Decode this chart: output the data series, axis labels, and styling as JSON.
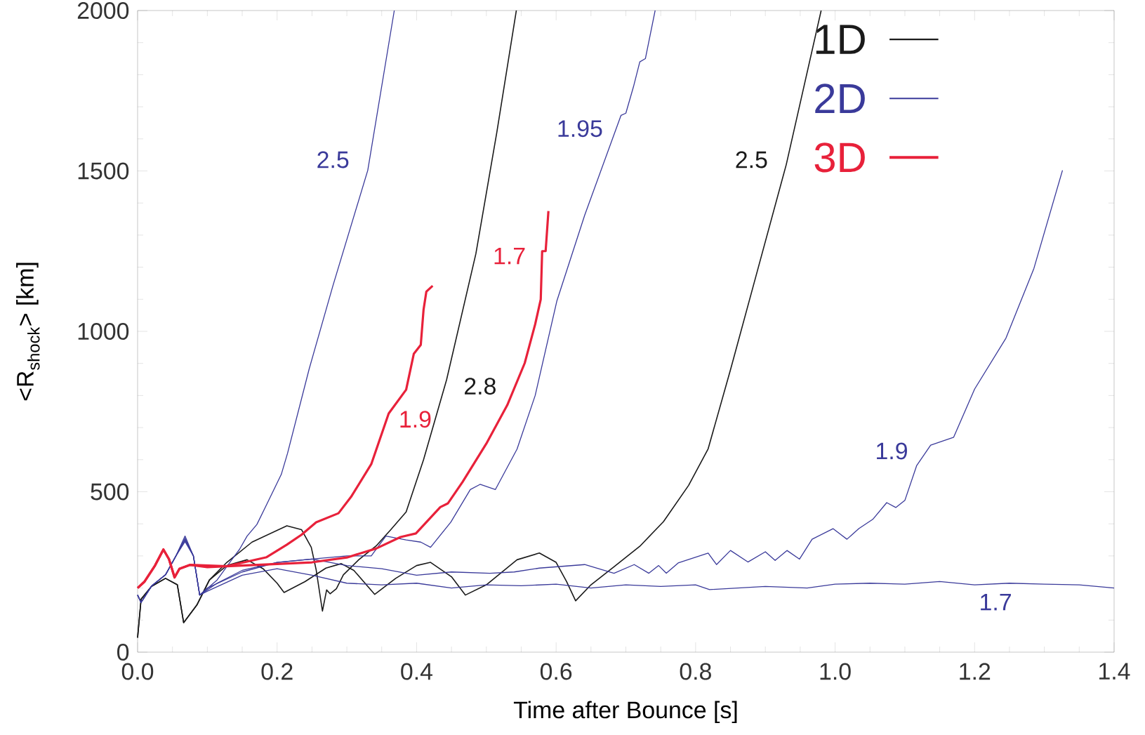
{
  "chart_data": {
    "type": "line",
    "xlabel": "Time after Bounce [s]",
    "ylabel": "<R$_{shock}$> [km]",
    "xlim": [
      0,
      1.4
    ],
    "ylim": [
      0,
      2000
    ],
    "xticks": [
      {
        "value": 0,
        "label": "0.0"
      },
      0.2,
      0.4,
      0.6,
      0.8,
      {
        "value": 1.0,
        "label": "1.0"
      },
      1.2,
      1.4
    ],
    "yticks": [
      0,
      500,
      1000,
      1500,
      2000
    ],
    "legend": false,
    "series": [
      {
        "name": "2.8",
        "color": "#1a1a1a",
        "x": [
          0,
          0.005,
          0.02,
          0.04,
          0.057,
          0.066,
          0.085,
          0.103,
          0.128,
          0.164,
          0.214,
          0.235,
          0.249,
          0.256,
          0.265,
          0.271,
          0.276,
          0.285,
          0.295,
          0.317,
          0.342,
          0.363,
          0.385,
          0.41,
          0.443,
          0.485,
          0.515,
          0.543
        ],
        "values": [
          45,
          165,
          205,
          230,
          210,
          92,
          147,
          225,
          280,
          343,
          394,
          382,
          327,
          257,
          128,
          194,
          182,
          198,
          241,
          288,
          331,
          382,
          437,
          600,
          849,
          1242,
          1620,
          2000
        ]
      },
      {
        "name": "2.5",
        "color": "#1a1a1a",
        "x": [
          0,
          0.005,
          0.02,
          0.04,
          0.057,
          0.066,
          0.085,
          0.103,
          0.128,
          0.157,
          0.18,
          0.2,
          0.21,
          0.24,
          0.27,
          0.292,
          0.31,
          0.34,
          0.37,
          0.4,
          0.42,
          0.45,
          0.47,
          0.5,
          0.544,
          0.576,
          0.6,
          0.615,
          0.628,
          0.65,
          0.683,
          0.72,
          0.754,
          0.79,
          0.818,
          0.85,
          0.89,
          0.93,
          0.955,
          0.98
        ],
        "values": [
          45,
          165,
          205,
          230,
          210,
          92,
          147,
          225,
          270,
          288,
          260,
          215,
          186,
          220,
          262,
          276,
          255,
          180,
          230,
          270,
          280,
          235,
          178,
          210,
          288,
          309,
          280,
          220,
          160,
          210,
          266,
          330,
          407,
          520,
          634,
          880,
          1200,
          1520,
          1760,
          2000
        ]
      },
      {
        "name": "2.5",
        "color": "#3a3a9a",
        "x": [
          0,
          0.005,
          0.02,
          0.04,
          0.055,
          0.068,
          0.08,
          0.089,
          0.114,
          0.135,
          0.146,
          0.157,
          0.171,
          0.185,
          0.206,
          0.215,
          0.246,
          0.28,
          0.33,
          0.368
        ],
        "values": [
          178,
          155,
          206,
          241,
          300,
          362,
          300,
          178,
          225,
          288,
          320,
          362,
          398,
          460,
          554,
          620,
          883,
          1142,
          1502,
          2000
        ]
      },
      {
        "name": "1.95",
        "color": "#3a3a9a",
        "x": [
          0,
          0.005,
          0.02,
          0.04,
          0.055,
          0.068,
          0.08,
          0.089,
          0.114,
          0.15,
          0.2,
          0.25,
          0.3,
          0.335,
          0.356,
          0.385,
          0.406,
          0.42,
          0.449,
          0.477,
          0.491,
          0.513,
          0.544,
          0.57,
          0.601,
          0.641,
          0.693,
          0.7,
          0.711,
          0.72,
          0.728,
          0.742
        ],
        "values": [
          178,
          155,
          206,
          241,
          300,
          355,
          300,
          178,
          215,
          255,
          280,
          290,
          300,
          300,
          362,
          350,
          343,
          327,
          405,
          507,
          523,
          507,
          633,
          800,
          1094,
          1362,
          1673,
          1680,
          1763,
          1840,
          1850,
          2000
        ]
      },
      {
        "name": "1.9",
        "color": "#3a3a9a",
        "x": [
          0,
          0.005,
          0.02,
          0.04,
          0.055,
          0.068,
          0.08,
          0.089,
          0.1,
          0.15,
          0.2,
          0.25,
          0.3,
          0.35,
          0.4,
          0.45,
          0.505,
          0.54,
          0.576,
          0.641,
          0.683,
          0.712,
          0.733,
          0.747,
          0.758,
          0.775,
          0.818,
          0.83,
          0.85,
          0.875,
          0.9,
          0.914,
          0.931,
          0.949,
          0.967,
          0.997,
          1.017,
          1.034,
          1.054,
          1.074,
          1.087,
          1.1,
          1.117,
          1.137,
          1.17,
          1.2,
          1.245,
          1.285,
          1.326
        ],
        "values": [
          178,
          155,
          206,
          241,
          300,
          350,
          300,
          178,
          200,
          250,
          280,
          290,
          270,
          260,
          240,
          250,
          246,
          250,
          262,
          273,
          246,
          273,
          246,
          270,
          246,
          278,
          309,
          273,
          317,
          281,
          313,
          286,
          317,
          290,
          352,
          385,
          352,
          385,
          414,
          466,
          451,
          473,
          582,
          645,
          670,
          820,
          979,
          1196,
          1502
        ]
      },
      {
        "name": "1.7",
        "color": "#3a3a9a",
        "x": [
          0,
          0.005,
          0.02,
          0.04,
          0.055,
          0.068,
          0.08,
          0.089,
          0.1,
          0.15,
          0.2,
          0.25,
          0.3,
          0.35,
          0.4,
          0.45,
          0.5,
          0.55,
          0.6,
          0.65,
          0.7,
          0.75,
          0.8,
          0.82,
          0.9,
          0.96,
          1.0,
          1.05,
          1.1,
          1.15,
          1.2,
          1.25,
          1.3,
          1.35,
          1.4
        ],
        "values": [
          178,
          155,
          206,
          241,
          300,
          345,
          300,
          178,
          190,
          240,
          260,
          240,
          215,
          210,
          215,
          200,
          210,
          207,
          212,
          200,
          210,
          205,
          210,
          195,
          205,
          200,
          212,
          215,
          212,
          220,
          210,
          215,
          212,
          210,
          200
        ]
      },
      {
        "name": "1.9",
        "color": "#e8213a",
        "x": [
          0,
          0.01,
          0.025,
          0.037,
          0.045,
          0.053,
          0.06,
          0.075,
          0.128,
          0.185,
          0.214,
          0.235,
          0.256,
          0.288,
          0.306,
          0.335,
          0.36,
          0.385,
          0.396,
          0.406,
          0.41,
          0.414,
          0.423
        ],
        "values": [
          200,
          220,
          270,
          320,
          290,
          233,
          260,
          272,
          268,
          296,
          335,
          366,
          405,
          433,
          484,
          586,
          744,
          818,
          930,
          958,
          1068,
          1124,
          1142
        ]
      },
      {
        "name": "1.7",
        "color": "#e8213a",
        "x": [
          0,
          0.01,
          0.025,
          0.037,
          0.045,
          0.053,
          0.06,
          0.075,
          0.1,
          0.15,
          0.2,
          0.25,
          0.3,
          0.342,
          0.377,
          0.399,
          0.434,
          0.445,
          0.466,
          0.5,
          0.53,
          0.555,
          0.57,
          0.578,
          0.58,
          0.585,
          0.589
        ],
        "values": [
          200,
          220,
          270,
          320,
          290,
          233,
          260,
          272,
          265,
          270,
          275,
          280,
          295,
          323,
          359,
          370,
          452,
          464,
          531,
          650,
          770,
          901,
          1022,
          1100,
          1250,
          1250,
          1375
        ]
      }
    ],
    "annotations": [
      "1D",
      "2D",
      "3D"
    ]
  }
}
